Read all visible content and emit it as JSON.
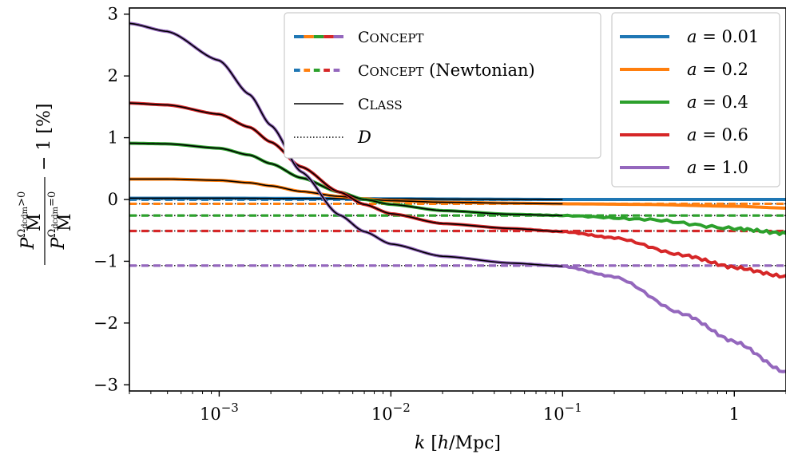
{
  "chart_data": {
    "type": "line",
    "xlabel": "k [h/Mpc]",
    "ylabel": "P_M^{Ω_dcdm>0} / P_M^{Ω_dcdm=0} − 1 [%]",
    "xscale": "log",
    "xlim": [
      0.0003,
      2.0
    ],
    "ylim": [
      -3.1,
      3.1
    ],
    "x_ticks": [
      {
        "value": 0.001,
        "label": "10",
        "exp": "−3"
      },
      {
        "value": 0.01,
        "label": "10",
        "exp": "−2"
      },
      {
        "value": 0.1,
        "label": "10",
        "exp": "−1"
      },
      {
        "value": 1,
        "label": "1",
        "exp": ""
      }
    ],
    "y_ticks": [
      {
        "value": 3,
        "label": "3"
      },
      {
        "value": 2,
        "label": "2"
      },
      {
        "value": 1,
        "label": "1"
      },
      {
        "value": 0,
        "label": "0"
      },
      {
        "value": -1,
        "label": "−1"
      },
      {
        "value": -2,
        "label": "−2"
      },
      {
        "value": -3,
        "label": "−3"
      }
    ],
    "legend_codes": {
      "placement": "top-center",
      "entries": [
        {
          "label": "CONCEPT",
          "style": "multicolor-solid"
        },
        {
          "label": "CONCEPT (Newtonian)",
          "style": "multicolor-dashed"
        },
        {
          "label": "CLASS",
          "style": "black-solid"
        },
        {
          "label": "D",
          "style": "black-dotted"
        }
      ]
    },
    "legend_times": {
      "placement": "top-right",
      "entries": [
        {
          "label": "a = 0.01",
          "color": "#1f77b4"
        },
        {
          "label": "a = 0.2",
          "color": "#ff7f0e"
        },
        {
          "label": "a = 0.4",
          "color": "#2ca02c"
        },
        {
          "label": "a = 0.6",
          "color": "#d62728"
        },
        {
          "label": "a = 1.0",
          "color": "#9467bd"
        }
      ]
    },
    "series": [
      {
        "name": "a = 0.01",
        "color": "#1f77b4",
        "growth_factor_D": -0.003,
        "newtonian": -0.003,
        "concept": {
          "x": [
            0.0003,
            0.001,
            0.003,
            0.01,
            0.03,
            0.1,
            0.3,
            1,
            2
          ],
          "y": [
            0.02,
            0.02,
            0.015,
            0.01,
            0.005,
            0.0,
            0.0,
            0.0,
            0.0
          ]
        }
      },
      {
        "name": "a = 0.2",
        "color": "#ff7f0e",
        "growth_factor_D": -0.07,
        "newtonian": -0.07,
        "concept": {
          "x": [
            0.0003,
            0.0005,
            0.001,
            0.0015,
            0.002,
            0.003,
            0.005,
            0.007,
            0.01,
            0.02,
            0.05,
            0.1,
            0.3,
            1,
            2
          ],
          "y": [
            0.33,
            0.33,
            0.31,
            0.27,
            0.22,
            0.13,
            0.05,
            0.01,
            -0.02,
            -0.045,
            -0.06,
            -0.07,
            -0.08,
            -0.11,
            -0.14
          ]
        }
      },
      {
        "name": "a = 0.4",
        "color": "#2ca02c",
        "growth_factor_D": -0.26,
        "newtonian": -0.26,
        "concept": {
          "x": [
            0.0003,
            0.0005,
            0.001,
            0.0015,
            0.002,
            0.003,
            0.005,
            0.007,
            0.01,
            0.02,
            0.05,
            0.1,
            0.3,
            1,
            2
          ],
          "y": [
            0.91,
            0.9,
            0.83,
            0.72,
            0.58,
            0.35,
            0.12,
            0.0,
            -0.08,
            -0.18,
            -0.24,
            -0.26,
            -0.32,
            -0.47,
            -0.55
          ]
        }
      },
      {
        "name": "a = 0.6",
        "color": "#d62728",
        "growth_factor_D": -0.51,
        "newtonian": -0.51,
        "concept": {
          "x": [
            0.0003,
            0.0005,
            0.001,
            0.0015,
            0.002,
            0.003,
            0.005,
            0.007,
            0.01,
            0.02,
            0.05,
            0.1,
            0.2,
            0.5,
            1,
            2
          ],
          "y": [
            1.56,
            1.53,
            1.38,
            1.17,
            0.93,
            0.53,
            0.12,
            -0.08,
            -0.23,
            -0.39,
            -0.47,
            -0.52,
            -0.62,
            -0.9,
            -1.1,
            -1.25
          ]
        }
      },
      {
        "name": "a = 1.0",
        "color": "#9467bd",
        "growth_factor_D": -1.07,
        "newtonian": -1.07,
        "concept": {
          "x": [
            0.0003,
            0.0005,
            0.001,
            0.0015,
            0.002,
            0.003,
            0.005,
            0.007,
            0.01,
            0.02,
            0.05,
            0.1,
            0.2,
            0.5,
            1,
            2
          ],
          "y": [
            2.85,
            2.72,
            2.25,
            1.7,
            1.2,
            0.45,
            -0.25,
            -0.52,
            -0.72,
            -0.92,
            -1.03,
            -1.08,
            -1.25,
            -1.85,
            -2.3,
            -2.8
          ]
        }
      }
    ]
  }
}
